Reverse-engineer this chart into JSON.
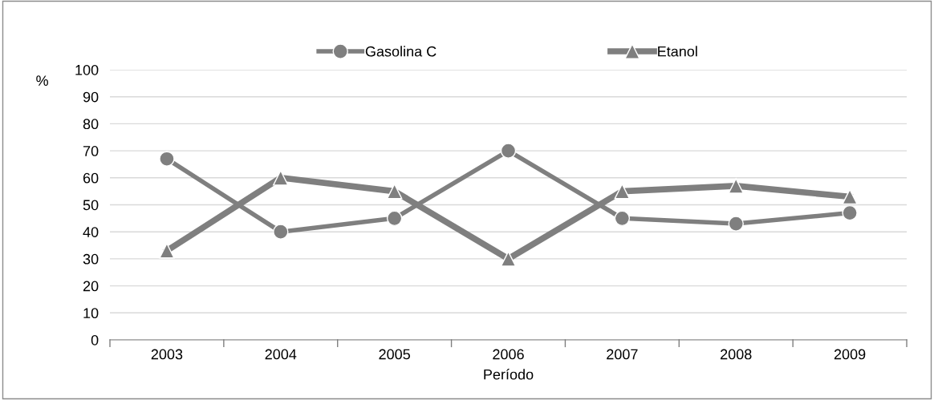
{
  "chart_data": {
    "type": "line",
    "ylabel": "%",
    "xlabel": "Período",
    "categories": [
      "2003",
      "2004",
      "2005",
      "2006",
      "2007",
      "2008",
      "2009"
    ],
    "series": [
      {
        "name": "Gasolina C",
        "color": "#7f7f7f",
        "marker": "circle",
        "values": [
          67,
          40,
          45,
          70,
          45,
          43,
          47
        ]
      },
      {
        "name": "Etanol",
        "color": "#7f7f7f",
        "marker": "triangle",
        "values": [
          33,
          60,
          55,
          30,
          55,
          57,
          53
        ]
      }
    ],
    "ylim": [
      0,
      100
    ],
    "yticks": [
      0,
      10,
      20,
      30,
      40,
      50,
      60,
      70,
      80,
      90,
      100
    ],
    "grid": "y",
    "legend": "top",
    "line_style": "solid"
  }
}
